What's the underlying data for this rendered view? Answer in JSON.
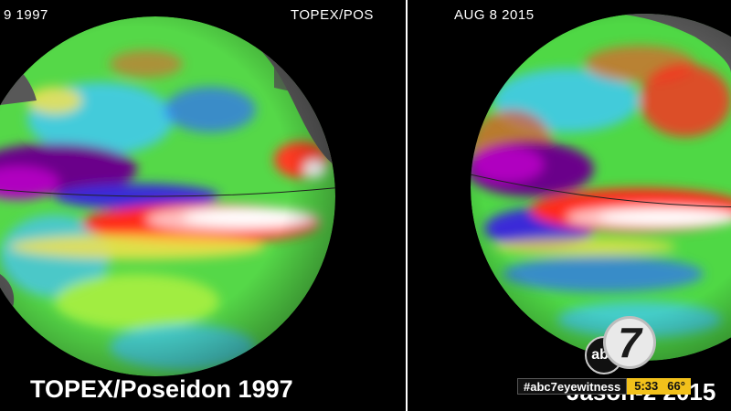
{
  "left_panel": {
    "date_text": "9 1997",
    "satellite_text": "TOPEX/POS",
    "caption": "TOPEX/Poseidon 1997"
  },
  "right_panel": {
    "date_text": "AUG 8 2015",
    "caption": "Jason-2 2015"
  },
  "broadcast": {
    "logo_text": "abc",
    "channel_number": "7",
    "hashtag": "#abc7eyewitness",
    "time": "5:33",
    "temperature": "66°"
  },
  "colors": {
    "background": "#000000",
    "land": "#555555",
    "ticker_accent": "#f2c11b"
  }
}
